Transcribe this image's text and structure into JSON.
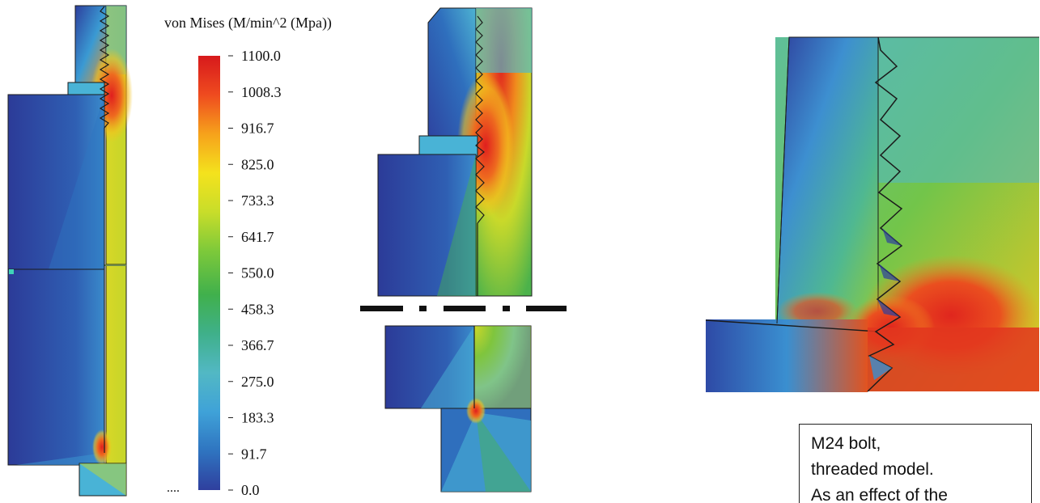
{
  "legend": {
    "title": "von Mises (M/min^2 (Mpa))",
    "ticks": [
      "1100.0",
      "1008.3",
      "916.7",
      "825.0",
      "733.3",
      "641.7",
      "550.0",
      "458.3",
      "366.7",
      "275.0",
      "183.3",
      "91.7",
      "0.0"
    ],
    "dots": "....",
    "colors": [
      "#d7191c",
      "#ef4b1f",
      "#f6a21b",
      "#f4e21d",
      "#c8dd2a",
      "#7dc93a",
      "#40b04c",
      "#3fb08a",
      "#52b8c4",
      "#3fa2d8",
      "#2f74c0",
      "#2f3f9e"
    ]
  },
  "caption": {
    "lines": [
      "M24 bolt,",
      "threaded model.",
      "As an effect of the"
    ]
  },
  "colors": {
    "dark_blue": "#2e3f9c",
    "blue": "#2f75c0",
    "cyan": "#49b3d6",
    "green": "#47b44d",
    "yellow_green": "#c4da2a",
    "yellow": "#e9e022",
    "orange": "#f29a1d",
    "red": "#e0261e",
    "outline": "#1b1b1b"
  }
}
